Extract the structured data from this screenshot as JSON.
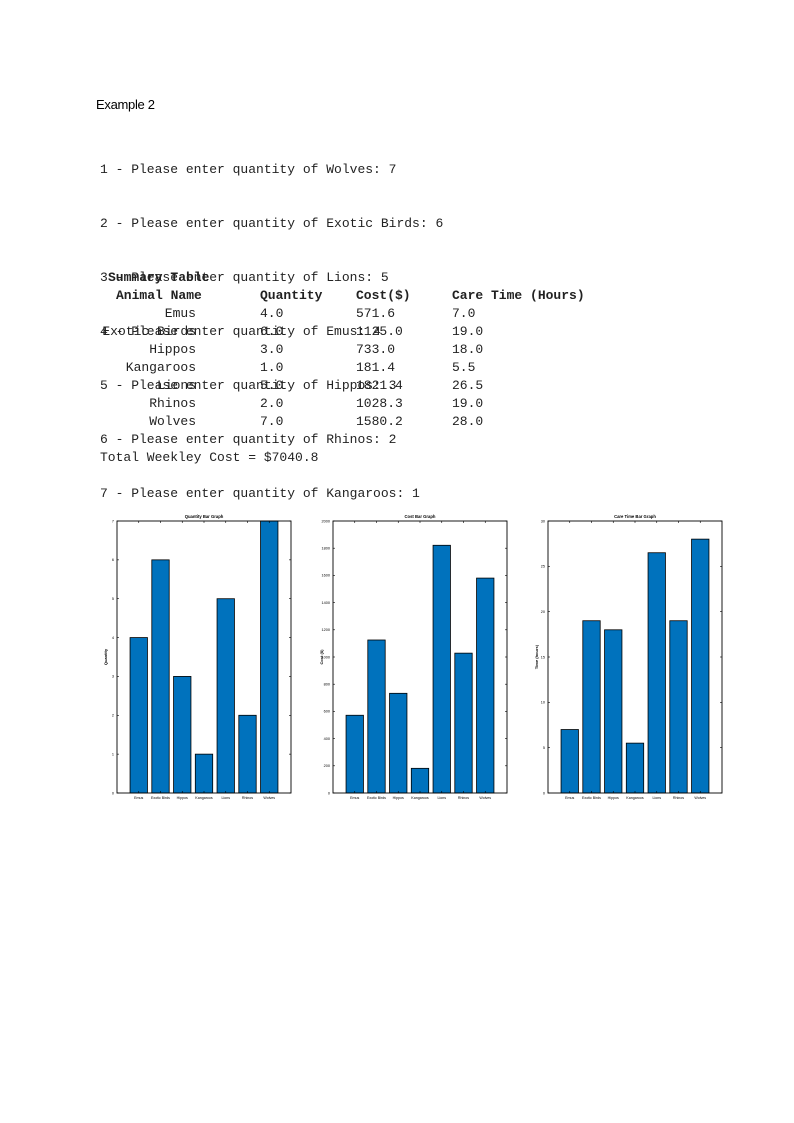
{
  "document": {
    "heading": "Example 2",
    "prompts": [
      "1 - Please enter quantity of Wolves: 7",
      "2 - Please enter quantity of Exotic Birds: 6",
      "3 - Please enter quantity of Lions: 5",
      "4 - Please enter quantity of Emus: 4",
      "5 - Please enter quantity of Hippos: 3",
      "6 - Please enter quantity of Rhinos: 2",
      "7 - Please enter quantity of Kangaroos: 1"
    ],
    "summary": {
      "title": "Summary Table",
      "headers": [
        "Animal Name",
        "Quantity",
        "Cost($)",
        "Care Time (Hours)"
      ],
      "rows": [
        [
          "Emus",
          "4.0",
          "571.6",
          "7.0"
        ],
        [
          "Exotic Birds",
          "6.0",
          "1125.0",
          "19.0"
        ],
        [
          "Hippos",
          "3.0",
          "733.0",
          "18.0"
        ],
        [
          "Kangaroos",
          "1.0",
          "181.4",
          "5.5"
        ],
        [
          "Lions",
          "5.0",
          "1821.4",
          "26.5"
        ],
        [
          "Rhinos",
          "2.0",
          "1028.3",
          "19.0"
        ],
        [
          "Wolves",
          "7.0",
          "1580.2",
          "28.0"
        ]
      ]
    },
    "total": "Total Weekley Cost = $7040.8"
  },
  "chart_data": [
    {
      "type": "bar",
      "title": "Quantity Bar Graph",
      "ylabel": "Quantity",
      "xlabel": "",
      "categories": [
        "Emus",
        "Exotic Birds",
        "Hippos",
        "Kangaroos",
        "Lions",
        "Rhinos",
        "Wolves"
      ],
      "values": [
        4,
        6,
        3,
        1,
        5,
        2,
        7
      ],
      "ylim": [
        0,
        7
      ],
      "yticks": [
        0,
        1,
        2,
        3,
        4,
        5,
        6,
        7
      ],
      "color": "#0072BD",
      "grid": false
    },
    {
      "type": "bar",
      "title": "Cost Bar Graph",
      "ylabel": "Cost ($)",
      "xlabel": "",
      "categories": [
        "Emus",
        "Exotic Birds",
        "Hippos",
        "Kangaroos",
        "Lions",
        "Rhinos",
        "Wolves"
      ],
      "values": [
        571.6,
        1125.0,
        733.0,
        181.4,
        1821.4,
        1028.3,
        1580.2
      ],
      "ylim": [
        0,
        2000
      ],
      "yticks": [
        0,
        200,
        400,
        600,
        800,
        1000,
        1200,
        1400,
        1600,
        1800,
        2000
      ],
      "color": "#0072BD",
      "grid": false
    },
    {
      "type": "bar",
      "title": "Care Time Bar Graph",
      "ylabel": "Time (hours)",
      "xlabel": "",
      "categories": [
        "Emus",
        "Exotic Birds",
        "Hippos",
        "Kangaroos",
        "Lions",
        "Rhinos",
        "Wolves"
      ],
      "values": [
        7.0,
        19.0,
        18.0,
        5.5,
        26.5,
        19.0,
        28.0
      ],
      "ylim": [
        0,
        30
      ],
      "yticks": [
        0,
        5,
        10,
        15,
        20,
        25,
        30
      ],
      "color": "#0072BD",
      "grid": false
    }
  ]
}
